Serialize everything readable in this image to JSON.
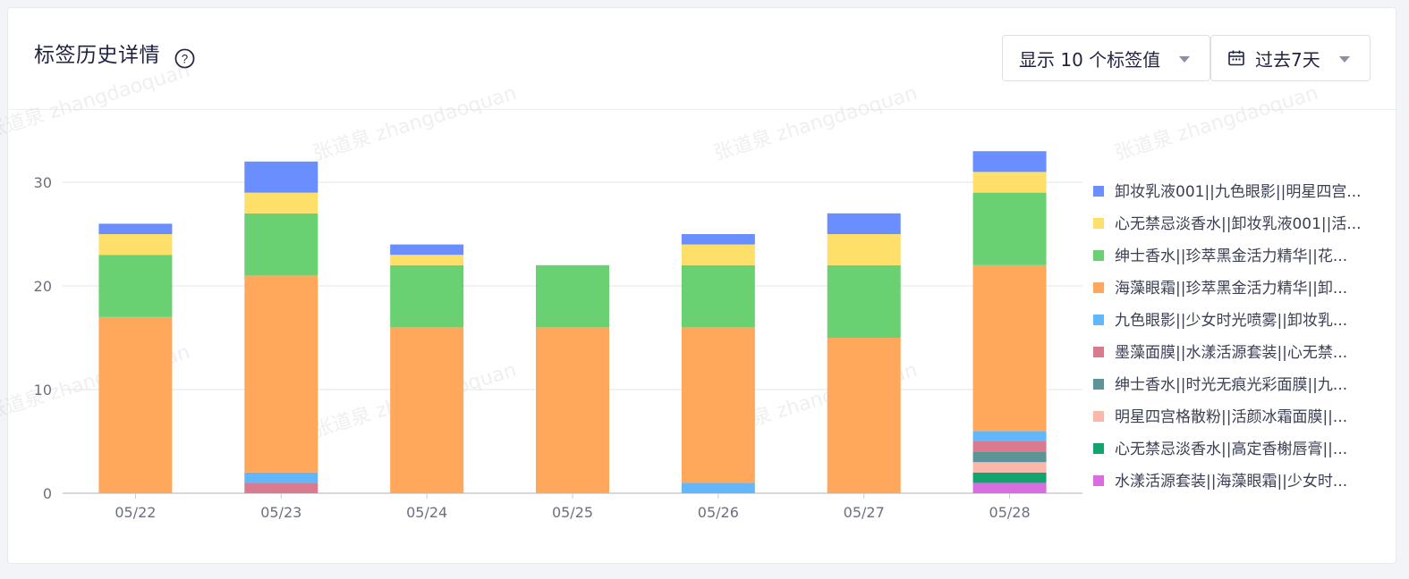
{
  "header": {
    "title": "标签历史详情",
    "help_icon": "question-circle-icon",
    "count_dropdown": "显示 10 个标签值",
    "range_dropdown": "过去7天",
    "calendar_icon": "calendar-icon"
  },
  "watermark_text": "张道泉 zhangdaoquan",
  "chart_data": {
    "type": "bar",
    "stacked": true,
    "categories": [
      "05/22",
      "05/23",
      "05/24",
      "05/25",
      "05/26",
      "05/27",
      "05/28"
    ],
    "y_ticks": [
      0,
      10,
      20,
      30
    ],
    "ylim": [
      0,
      35
    ],
    "grid": true,
    "legend_position": "right",
    "series": [
      {
        "name": "水漾活源套装||海藻眼霜||少女时...",
        "color": "#d96ce0",
        "values": [
          0,
          0,
          0,
          0,
          0,
          0,
          1
        ]
      },
      {
        "name": "心无禁忌淡香水||高定香榭唇膏||...",
        "color": "#12a36e",
        "values": [
          0,
          0,
          0,
          0,
          0,
          0,
          1
        ]
      },
      {
        "name": "明星四宫格散粉||活颜冰霜面膜||...",
        "color": "#fbb8aa",
        "values": [
          0,
          0,
          0,
          0,
          0,
          0,
          1
        ]
      },
      {
        "name": "绅士香水||时光无痕光彩面膜||九...",
        "color": "#5b9597",
        "values": [
          0,
          0,
          0,
          0,
          0,
          0,
          1
        ]
      },
      {
        "name": "墨藻面膜||水漾活源套装||心无禁...",
        "color": "#d97a8e",
        "values": [
          0,
          1,
          0,
          0,
          0,
          0,
          1
        ]
      },
      {
        "name": "九色眼影||少女时光喷雾||卸妆乳...",
        "color": "#62b7fb",
        "values": [
          0,
          1,
          0,
          0,
          1,
          0,
          1
        ]
      },
      {
        "name": "海藻眼霜||珍萃黑金活力精华||卸...",
        "color": "#ffa85c",
        "values": [
          17,
          19,
          16,
          16,
          15,
          15,
          16
        ]
      },
      {
        "name": "绅士香水||珍萃黑金活力精华||花...",
        "color": "#6ad173",
        "values": [
          6,
          6,
          6,
          6,
          6,
          7,
          7
        ]
      },
      {
        "name": "心无禁忌淡香水||卸妆乳液001||活...",
        "color": "#fedf6a",
        "values": [
          2,
          2,
          1,
          0,
          2,
          3,
          2
        ]
      },
      {
        "name": "卸妆乳液001||九色眼影||明星四宫...",
        "color": "#6a8efd",
        "values": [
          1,
          3,
          1,
          0,
          1,
          2,
          2
        ]
      }
    ]
  }
}
